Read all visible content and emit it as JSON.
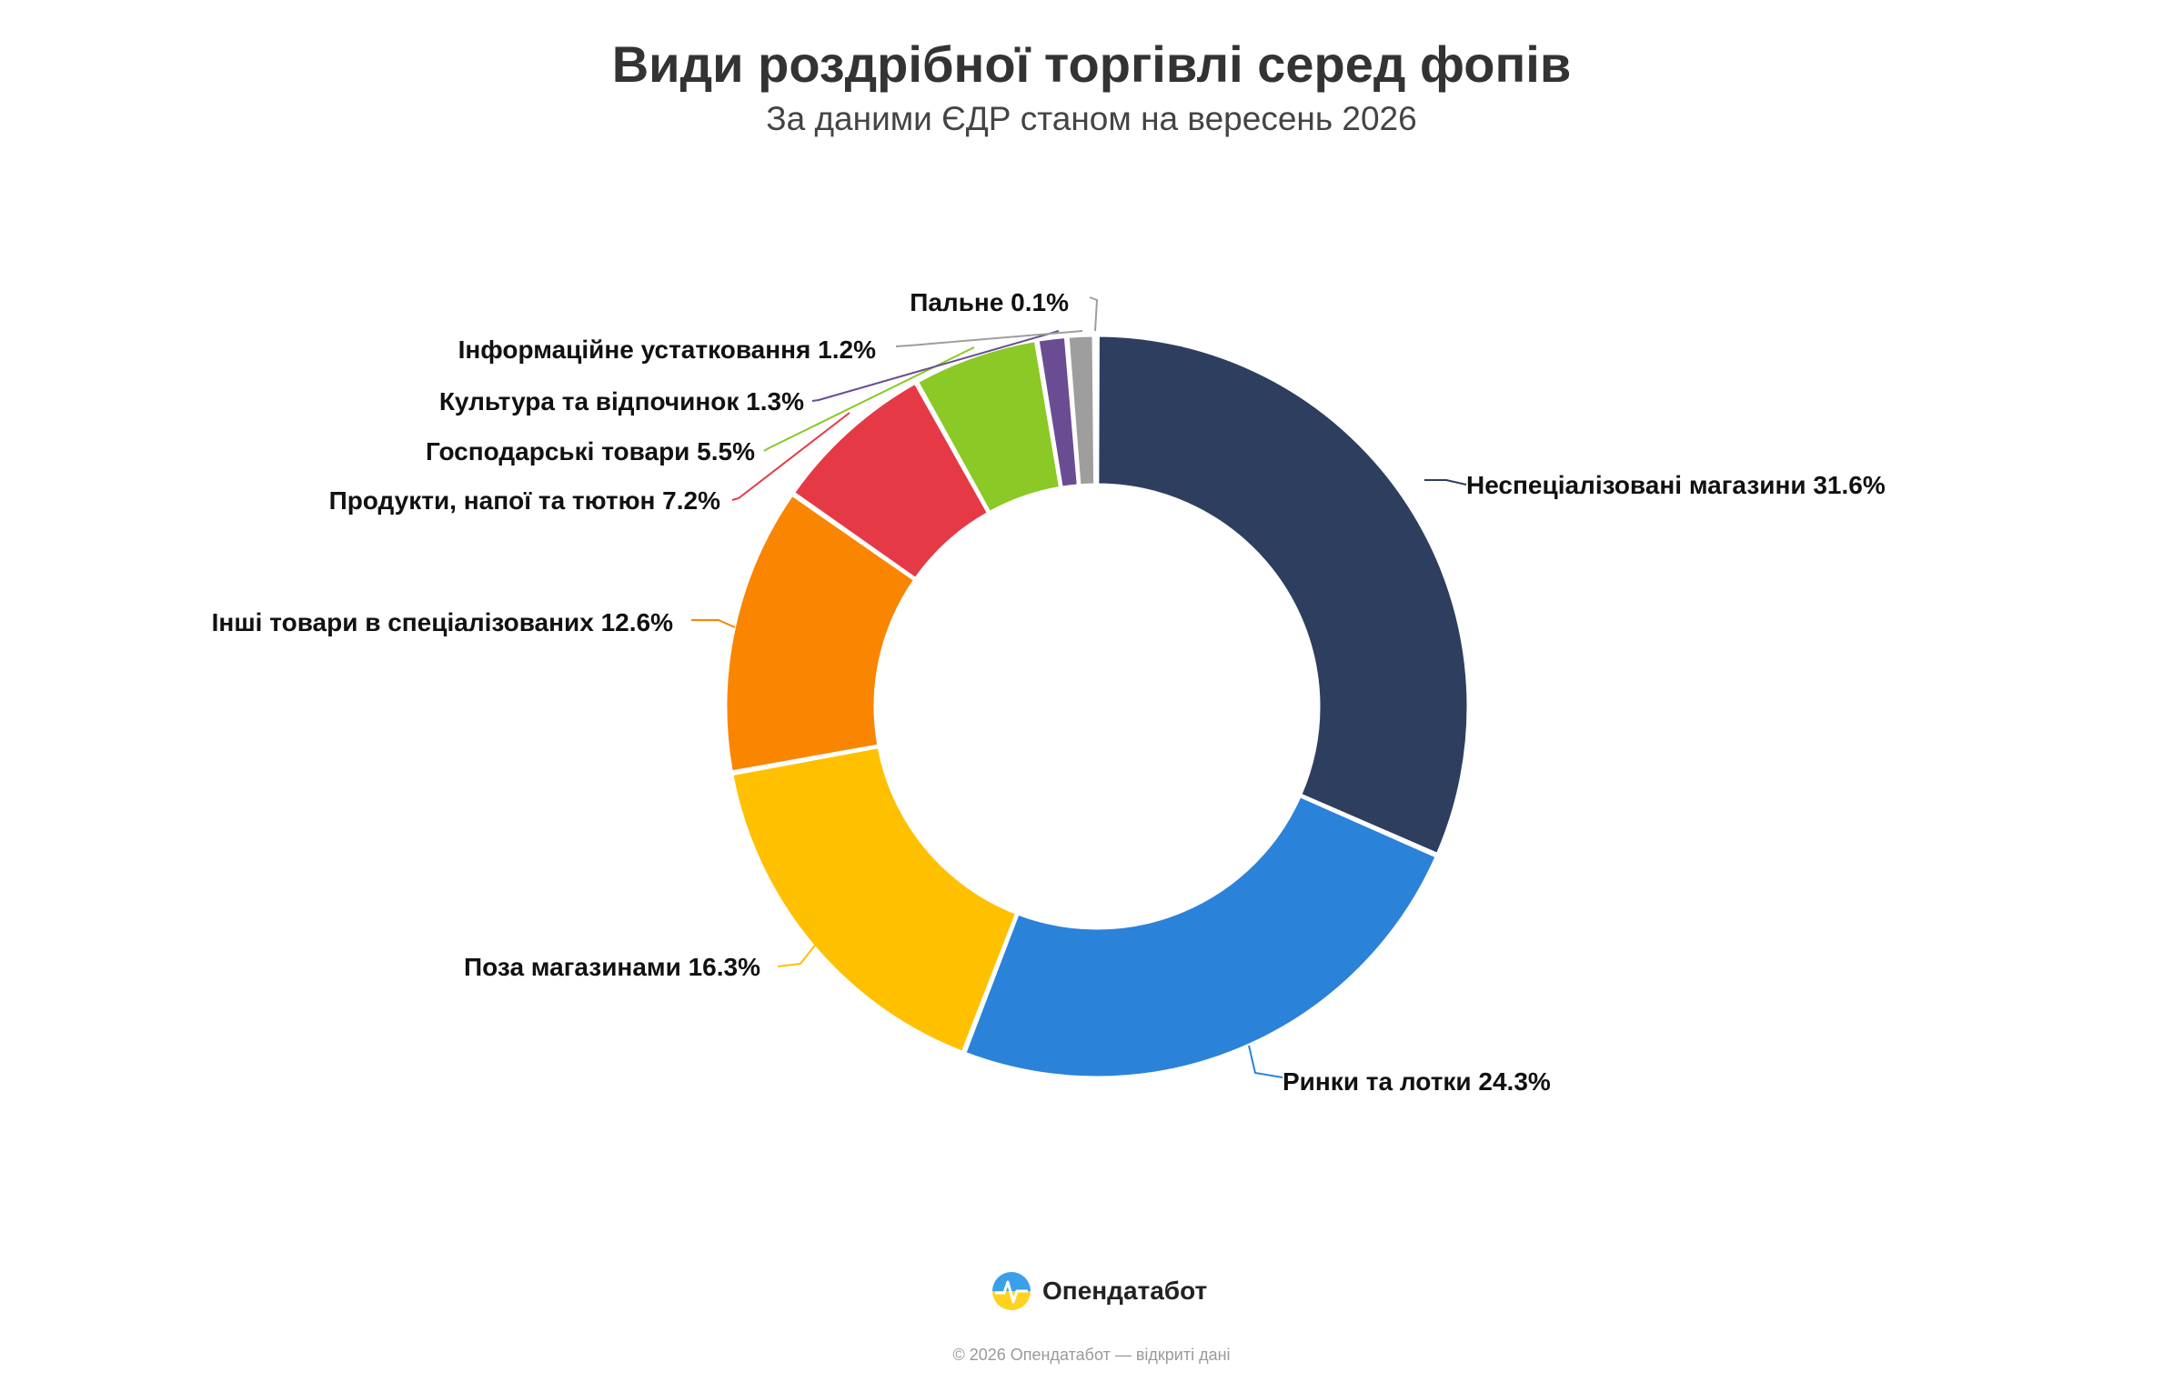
{
  "chart_data": {
    "type": "pie",
    "title": "Види роздрібної торгівлі серед фопів",
    "subtitle": "За даними ЄДР станом на вересень 2026",
    "unit": "%",
    "categories": [
      "Неспеціалізовані магазини",
      "Ринки та лотки",
      "Поза магазинами",
      "Інші товари в спеціалізованих",
      "Продукти, напої та тютюн",
      "Господарські товари",
      "Культура та відпочинок",
      "Інформаційне устатковання",
      "Пальне"
    ],
    "values": [
      31.6,
      24.3,
      16.3,
      12.6,
      7.2,
      5.5,
      1.3,
      1.2,
      0.1
    ],
    "labels": [
      "Неспеціалізовані магазини 31.6%",
      "Ринки та лотки 24.3%",
      "Поза магазинами 16.3%",
      "Інші товари в спеціалізованих 12.6%",
      "Продукти, напої та тютюн 7.2%",
      "Господарські товари 5.5%",
      "Культура та відпочинок 1.3%",
      "Інформаційне устатковання 1.2%",
      "Пальне 0.1%"
    ],
    "colors": [
      "#2e3e5f",
      "#2b82d9",
      "#ffc000",
      "#fa8500",
      "#e63946",
      "#8ac926",
      "#6a4c93",
      "#9e9e9e",
      "#bdbdbd"
    ],
    "donut": true,
    "legend": "none"
  },
  "footer": {
    "brand": "Опендатабот",
    "brand_icon": "opendatabot-logo-icon",
    "copyright": "© 2026 Опендатабот — відкриті дані"
  }
}
